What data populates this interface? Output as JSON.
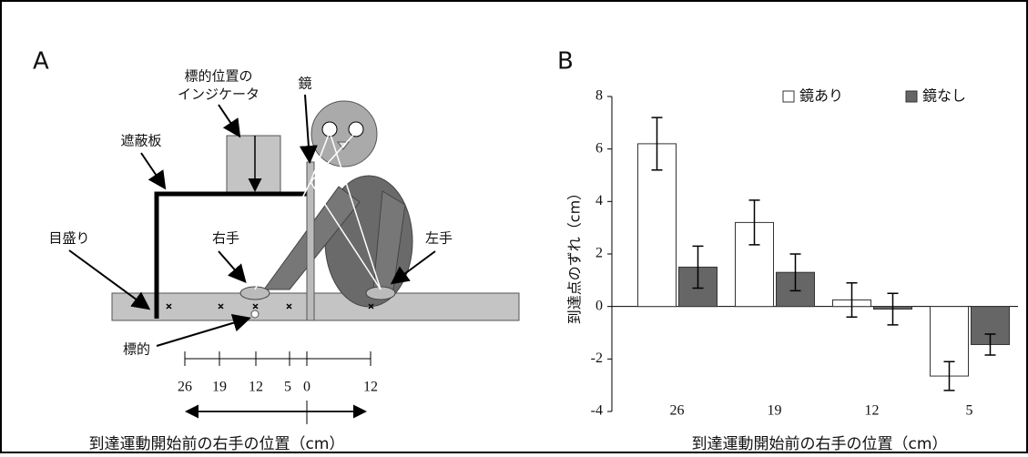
{
  "panel_a": {
    "label": "A",
    "indicator_label": [
      "標的位置の",
      "インジケータ"
    ],
    "mirror_label": "鏡",
    "shield_label": "遮蔽板",
    "scale_label": "目盛り",
    "right_hand_label": "右手",
    "left_hand_label": "左手",
    "target_label": "標的",
    "scale_numbers": [
      "26",
      "19",
      "12",
      "5",
      "0",
      "12"
    ],
    "x_label": "到達運動開始前の右手の位置（cm）"
  },
  "chart_data": {
    "type": "bar",
    "panel_label": "B",
    "y_label": "到達点のずれ（cm）",
    "x_label": "到達運動開始前の右手の位置（cm）",
    "categories": [
      "26",
      "19",
      "12",
      "5"
    ],
    "series": [
      {
        "name": "鏡あり",
        "color": "#ffffff",
        "values": [
          6.2,
          3.2,
          0.25,
          -2.65
        ],
        "errors": [
          1.0,
          0.85,
          0.65,
          0.55
        ]
      },
      {
        "name": "鏡なし",
        "color": "#666666",
        "values": [
          1.5,
          1.3,
          -0.1,
          -1.45
        ],
        "errors": [
          0.8,
          0.7,
          0.6,
          0.4
        ]
      }
    ],
    "ylim": [
      -4,
      8
    ],
    "yticks": [
      -4,
      -2,
      0,
      2,
      4,
      6,
      8
    ],
    "legend": "upper-right"
  }
}
